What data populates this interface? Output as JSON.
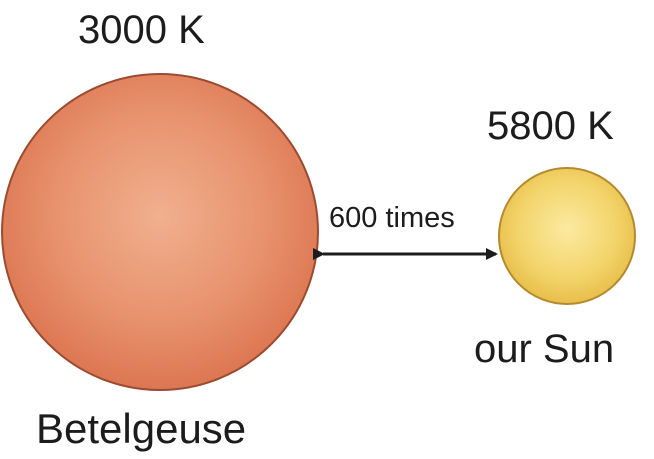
{
  "betelgeuse": {
    "temperature": "3000 K",
    "name": "Betelgeuse",
    "color": "#e58a63"
  },
  "sun": {
    "temperature": "5800 K",
    "name": "our Sun",
    "color": "#f3d36a"
  },
  "comparison": {
    "label": "600 times"
  }
}
